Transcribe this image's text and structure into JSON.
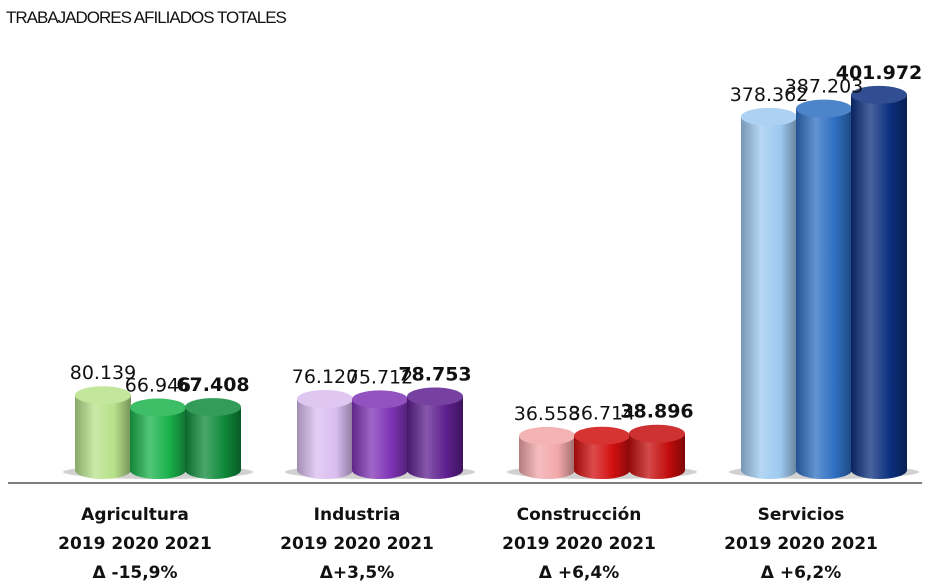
{
  "chart_data": {
    "type": "bar",
    "title": "TRABAJADORES AFILIADOS TOTALES",
    "categories": [
      "Agricultura",
      "Industria",
      "Construcción",
      "Servicios"
    ],
    "years_label": "2019 2020 2021",
    "changes": [
      "Δ -15,9%",
      "Δ+3,5%",
      "Δ +6,4%",
      "Δ +6,2%"
    ],
    "series": [
      {
        "name": "2019",
        "values": [
          80139,
          76120,
          36558,
          378362
        ]
      },
      {
        "name": "2020",
        "values": [
          66946,
          75712,
          36714,
          387203
        ]
      },
      {
        "name": "2021",
        "values": [
          67408,
          78753,
          38896,
          401972
        ]
      }
    ],
    "value_labels": [
      [
        "80.139",
        "66.946",
        "67.408"
      ],
      [
        "76.120",
        "75.712",
        "78.753"
      ],
      [
        "36.558",
        "36.714",
        "38.896"
      ],
      [
        "378.362",
        "387.203",
        "401.972"
      ]
    ],
    "colors": [
      [
        "#b6e18a",
        "#19b14b",
        "#0f8a3a"
      ],
      [
        "#d9bdf0",
        "#7f33b5",
        "#5e1f8f"
      ],
      [
        "#f2a7a9",
        "#d10f0f",
        "#c40d0d"
      ],
      [
        "#9ec9f0",
        "#2e6fc2",
        "#0c2f7e"
      ]
    ],
    "ylim": [
      0,
      420000
    ],
    "grid": false
  }
}
